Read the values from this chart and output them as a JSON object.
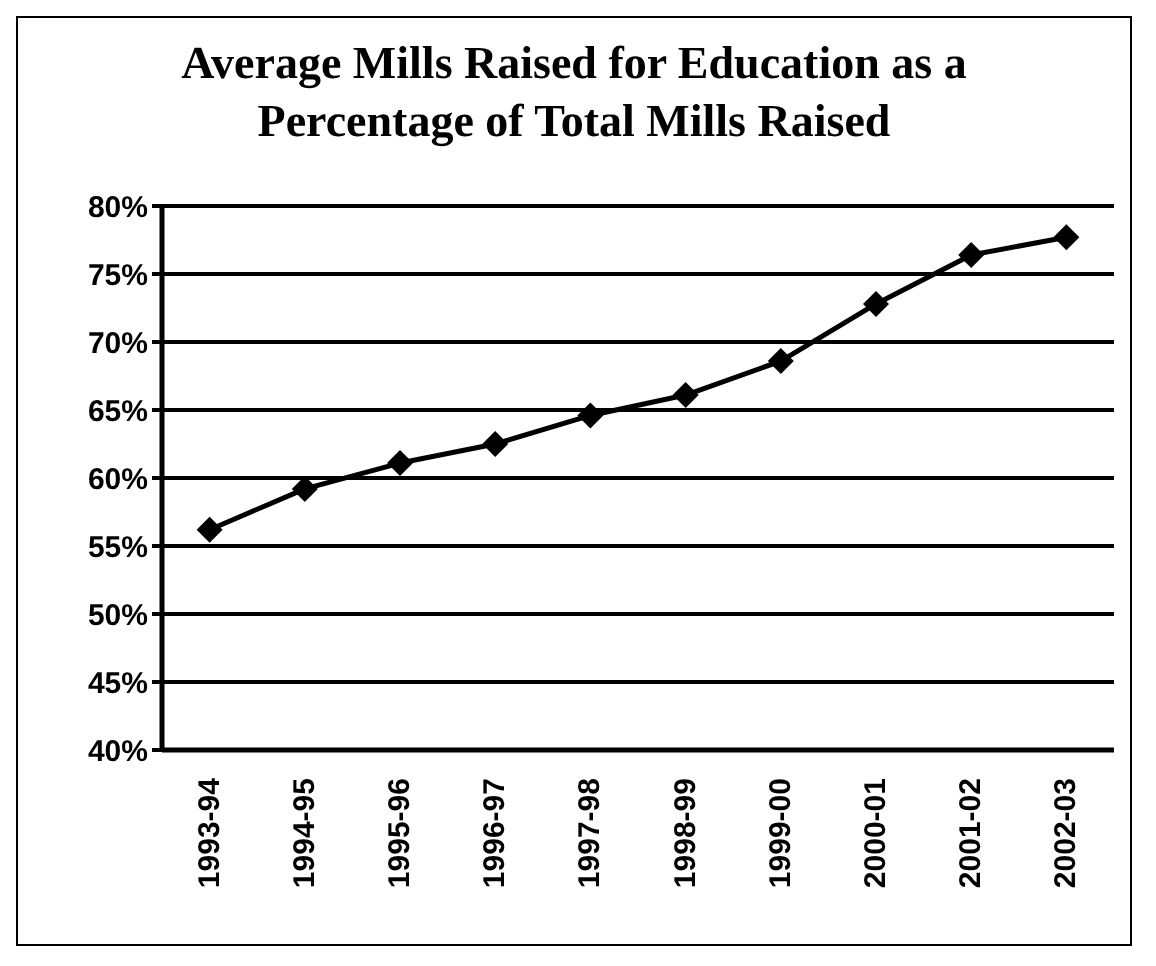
{
  "chart_data": {
    "type": "line",
    "title": "Average Mills Raised for Education as a Percentage of Total Mills Raised",
    "categories": [
      "1993-94",
      "1994-95",
      "1995-96",
      "1996-97",
      "1997-98",
      "1998-99",
      "1999-00",
      "2000-01",
      "2001-02",
      "2002-03"
    ],
    "series": [
      {
        "color": "#000000",
        "values": [
          56.2,
          59.2,
          61.1,
          62.5,
          64.6,
          66.1,
          68.6,
          72.8,
          76.4,
          77.7
        ]
      }
    ],
    "ylim": [
      40,
      80
    ],
    "yticks": [
      {
        "value": 40,
        "label": "40%"
      },
      {
        "value": 45,
        "label": "45%"
      },
      {
        "value": 50,
        "label": "50%"
      },
      {
        "value": 55,
        "label": "55%"
      },
      {
        "value": 60,
        "label": "60%"
      },
      {
        "value": 65,
        "label": "65%"
      },
      {
        "value": 70,
        "label": "70%"
      },
      {
        "value": 75,
        "label": "75%"
      },
      {
        "value": 80,
        "label": "80%"
      }
    ],
    "grid": "y",
    "marker": "diamond",
    "line_style": "solid"
  }
}
